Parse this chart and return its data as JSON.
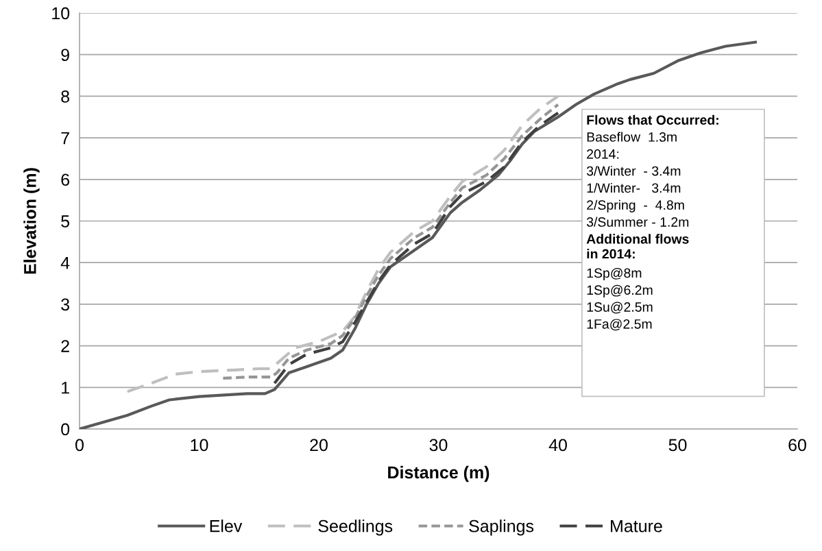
{
  "chart_data": {
    "type": "line",
    "xlabel": "Distance (m)",
    "ylabel": "Elevation (m)",
    "xlim": [
      0,
      60
    ],
    "xticks": [
      0,
      10,
      20,
      30,
      40,
      50,
      60
    ],
    "ylim": [
      0,
      10
    ],
    "yticks": [
      0,
      1,
      2,
      3,
      4,
      5,
      6,
      7,
      8,
      9,
      10
    ],
    "grid": "y",
    "legend": "bottom",
    "marker": "none",
    "series": [
      {
        "name": "Elev",
        "color": "#595959",
        "line_style": "solid",
        "x": [
          0,
          4,
          6,
          7.5,
          10,
          14,
          15.5,
          16.3,
          17.5,
          19,
          21,
          22,
          23,
          24,
          25,
          26,
          28,
          29.5,
          31,
          32,
          33.5,
          35,
          36,
          37,
          38,
          40,
          41.5,
          43,
          45,
          46,
          48,
          50,
          52,
          54,
          56.5
        ],
        "values": [
          0,
          0.33,
          0.55,
          0.7,
          0.78,
          0.85,
          0.85,
          0.95,
          1.35,
          1.5,
          1.7,
          1.9,
          2.4,
          3.0,
          3.5,
          3.9,
          4.3,
          4.6,
          5.2,
          5.45,
          5.75,
          6.1,
          6.45,
          6.85,
          7.15,
          7.5,
          7.8,
          8.05,
          8.3,
          8.4,
          8.55,
          8.85,
          9.05,
          9.2,
          9.3
        ]
      },
      {
        "name": "Seedlings",
        "color": "#bfbfbf",
        "line_style": "dashed",
        "x": [
          4,
          6,
          8,
          10,
          13,
          15,
          16,
          17,
          18,
          20,
          22,
          23,
          24,
          25,
          26,
          28,
          29.5,
          31,
          32,
          34,
          35.5,
          37,
          38.5,
          40
        ],
        "values": [
          0.9,
          1.1,
          1.32,
          1.38,
          1.42,
          1.45,
          1.45,
          1.7,
          1.95,
          2.1,
          2.35,
          2.7,
          3.3,
          3.85,
          4.25,
          4.75,
          5.0,
          5.6,
          5.95,
          6.3,
          6.7,
          7.3,
          7.7,
          8.0
        ]
      },
      {
        "name": "Saplings",
        "color": "#969696",
        "line_style": "dotted",
        "x": [
          12,
          14,
          16,
          16.5,
          17.5,
          19,
          21,
          22,
          23,
          24,
          25,
          26,
          28,
          29.5,
          31,
          32,
          34,
          35.5,
          37,
          38.5,
          40
        ],
        "values": [
          1.22,
          1.25,
          1.25,
          1.35,
          1.7,
          1.9,
          2.05,
          2.25,
          2.65,
          3.2,
          3.7,
          4.1,
          4.6,
          4.85,
          5.45,
          5.8,
          6.1,
          6.5,
          7.05,
          7.45,
          7.8
        ]
      },
      {
        "name": "Mature",
        "color": "#404040",
        "line_style": "dashed",
        "x": [
          16.3,
          17.5,
          19,
          21,
          22,
          23,
          24,
          25,
          26,
          28,
          29.5,
          31,
          32,
          34,
          35.5,
          37,
          38.5,
          40
        ],
        "values": [
          1.1,
          1.55,
          1.8,
          1.95,
          2.1,
          2.55,
          3.05,
          3.55,
          3.95,
          4.45,
          4.7,
          5.35,
          5.65,
          5.95,
          6.3,
          6.9,
          7.3,
          7.6
        ]
      }
    ],
    "annotations": [
      "Flows that Occurred:",
      "Baseflow  1.3m",
      "2014:",
      "3/Winter  - 3.4m",
      "1/Winter-   3.4m",
      "2/Spring  -  4.8m",
      "3/Summer - 1.2m",
      "Additional flows\nin 2014:",
      "1Sp@8m",
      "1Sp@6.2m",
      "1Su@2.5m",
      "1Fa@2.5m"
    ]
  }
}
